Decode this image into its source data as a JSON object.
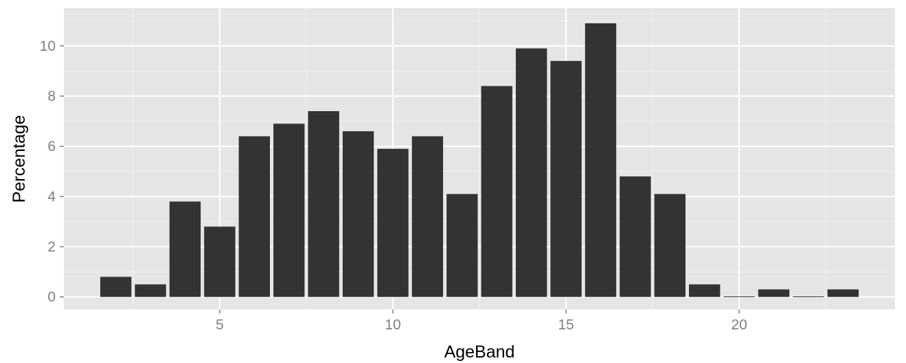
{
  "chart_data": {
    "type": "bar",
    "title": "",
    "xlabel": "AgeBand",
    "ylabel": "Percentage",
    "x": [
      2,
      3,
      4,
      5,
      6,
      7,
      8,
      9,
      10,
      11,
      12,
      13,
      14,
      15,
      16,
      17,
      18,
      19,
      20,
      21,
      22,
      23
    ],
    "values": [
      0.8,
      0.5,
      3.8,
      2.8,
      6.4,
      6.9,
      7.4,
      6.6,
      5.9,
      6.4,
      4.1,
      8.4,
      9.9,
      9.4,
      10.9,
      4.8,
      4.1,
      0.5,
      0.02,
      0.3,
      0.02,
      0.3
    ],
    "xlim": [
      0.5,
      24.5
    ],
    "ylim": [
      -0.5,
      11.5
    ],
    "x_ticks": [
      "5",
      "10",
      "15",
      "20"
    ],
    "y_ticks": [
      "0",
      "2",
      "4",
      "6",
      "8",
      "10"
    ],
    "grid": true,
    "legend": "none",
    "colors": {
      "bar": "#333333",
      "panel": "#e5e5e5",
      "grid_major": "#ffffff",
      "grid_minor": "#f2f2f2",
      "tick_text": "#7f7f7f",
      "title_text": "#000000"
    }
  }
}
